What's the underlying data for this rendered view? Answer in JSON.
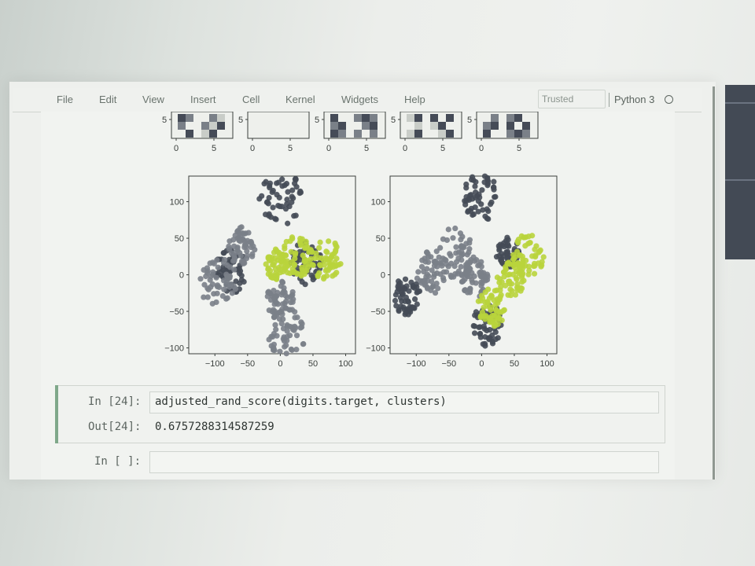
{
  "menubar": {
    "items": [
      "File",
      "Edit",
      "View",
      "Insert",
      "Cell",
      "Kernel",
      "Widgets",
      "Help"
    ],
    "trusted_label": "Trusted",
    "kernel_name": "Python 3",
    "kernel_indicator_icon": "kernel-idle-circle-icon"
  },
  "digit_thumbnails": {
    "count": 5,
    "y_tick": "5",
    "x_ticks": [
      "0",
      "5"
    ]
  },
  "chart_data": [
    {
      "type": "scatter",
      "title": "",
      "xlabel": "",
      "ylabel": "",
      "xlim": [
        -140,
        115
      ],
      "ylim": [
        -108,
        135
      ],
      "xticks": [
        -100,
        -50,
        0,
        50,
        100
      ],
      "yticks": [
        -100,
        -50,
        0,
        50,
        100
      ],
      "xtick_labels": [
        "−100",
        "−50",
        "0",
        "50",
        "100"
      ],
      "ytick_labels": [
        "−100",
        "−50",
        "0",
        "50",
        "100"
      ],
      "series": [
        {
          "color": "#454b57",
          "clusters": [
            [
              0,
              105,
              18
            ],
            [
              40,
              15,
              14
            ],
            [
              -75,
              5,
              14
            ]
          ]
        },
        {
          "color": "#7a8088",
          "clusters": [
            [
              -95,
              -10,
              16
            ],
            [
              -60,
              40,
              12
            ],
            [
              10,
              -80,
              16
            ],
            [
              0,
              -35,
              12
            ]
          ]
        },
        {
          "color": "#b9d43c",
          "clusters": [
            [
              25,
              25,
              13
            ],
            [
              70,
              20,
              14
            ],
            [
              -5,
              15,
              10
            ]
          ]
        }
      ]
    },
    {
      "type": "scatter",
      "title": "",
      "xlabel": "",
      "ylabel": "",
      "xlim": [
        -140,
        115
      ],
      "ylim": [
        -108,
        135
      ],
      "xticks": [
        -100,
        -50,
        0,
        50,
        100
      ],
      "yticks": [
        -100,
        -50,
        0,
        50,
        100
      ],
      "xtick_labels": [
        "−100",
        "−50",
        "0",
        "50",
        "100"
      ],
      "ytick_labels": [
        "−100",
        "−50",
        "0",
        "50",
        "100"
      ],
      "series": [
        {
          "color": "#454b57",
          "clusters": [
            [
              0,
              105,
              16
            ],
            [
              -115,
              -30,
              12
            ],
            [
              10,
              -70,
              14
            ],
            [
              40,
              30,
              10
            ]
          ]
        },
        {
          "color": "#7a8088",
          "clusters": [
            [
              -40,
              30,
              16
            ],
            [
              -75,
              5,
              14
            ],
            [
              -10,
              -5,
              12
            ]
          ]
        },
        {
          "color": "#b9d43c",
          "clusters": [
            [
              70,
              25,
              14
            ],
            [
              45,
              -5,
              12
            ],
            [
              15,
              -45,
              12
            ]
          ]
        }
      ]
    }
  ],
  "cells": [
    {
      "prompt": "In [24]:",
      "code": "adjusted_rand_score(digits.target, clusters)",
      "out_prompt": "Out[24]:",
      "output": "0.6757288314587259"
    },
    {
      "prompt": "In [ ]:",
      "code": ""
    }
  ]
}
